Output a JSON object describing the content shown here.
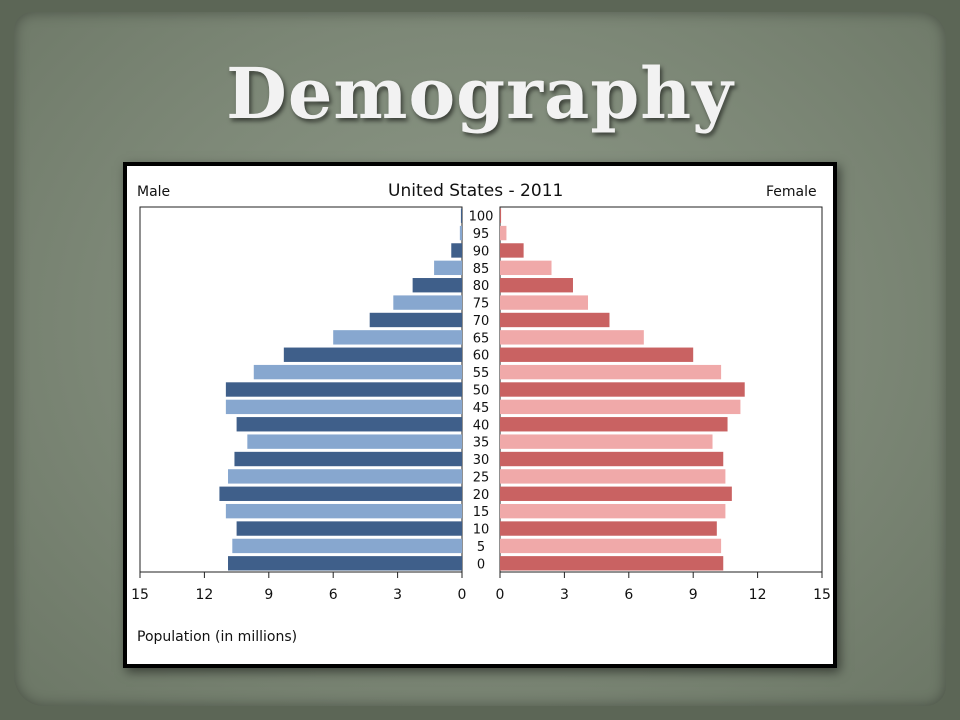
{
  "slide": {
    "title": "Demography"
  },
  "chart_data": {
    "type": "bar",
    "orientation": "horizontal",
    "subtype": "population-pyramid",
    "title": "United States - 2011",
    "left_label": "Male",
    "right_label": "Female",
    "xlabel": "Population (in millions)",
    "xlim": [
      0,
      15
    ],
    "x_ticks": [
      "0",
      "3",
      "6",
      "9",
      "12",
      "15"
    ],
    "categories": [
      "0",
      "5",
      "10",
      "15",
      "20",
      "25",
      "30",
      "35",
      "40",
      "45",
      "50",
      "55",
      "60",
      "65",
      "70",
      "75",
      "80",
      "85",
      "90",
      "95",
      "100"
    ],
    "series": [
      {
        "name": "Male",
        "values": [
          10.9,
          10.7,
          10.5,
          11.0,
          11.3,
          10.9,
          10.6,
          10.0,
          10.5,
          11.0,
          11.0,
          9.7,
          8.3,
          6.0,
          4.3,
          3.2,
          2.3,
          1.3,
          0.5,
          0.1,
          0.05
        ]
      },
      {
        "name": "Female",
        "values": [
          10.4,
          10.3,
          10.1,
          10.5,
          10.8,
          10.5,
          10.4,
          9.9,
          10.6,
          11.2,
          11.4,
          10.3,
          9.0,
          6.7,
          5.1,
          4.1,
          3.4,
          2.4,
          1.1,
          0.3,
          0.05
        ]
      }
    ],
    "colors": {
      "male_dark": "#3f5f8a",
      "male_light": "#87a7cf",
      "female_dark": "#c96262",
      "female_light": "#f0a9a9"
    },
    "grid": false
  }
}
